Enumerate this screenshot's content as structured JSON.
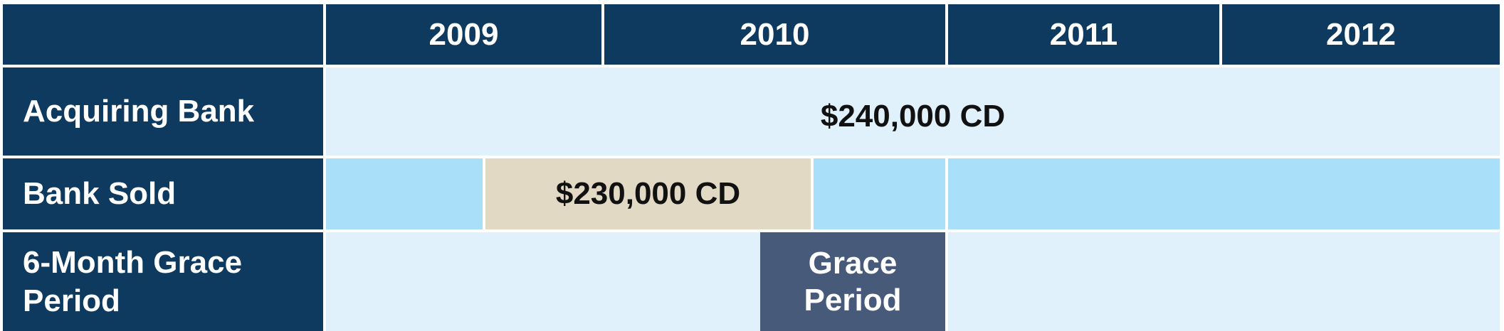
{
  "header": {
    "years": [
      "2009",
      "2010",
      "2011",
      "2012"
    ]
  },
  "rows": {
    "acquiring_bank": {
      "label": "Acquiring Bank",
      "bar_label": "$240,000 CD"
    },
    "bank_sold": {
      "label": "Bank Sold",
      "bar_label": "$230,000 CD"
    },
    "grace_period": {
      "label_line1": "6-Month Grace",
      "label_line2": "Period",
      "bar_line1": "Grace",
      "bar_line2": "Period"
    }
  },
  "colors": {
    "navy": "#0d3a5e",
    "light_blue": "#e0f1fb",
    "sky_blue": "#aadff9",
    "tan": "#e2d9c5",
    "slate": "#475a7a"
  }
}
